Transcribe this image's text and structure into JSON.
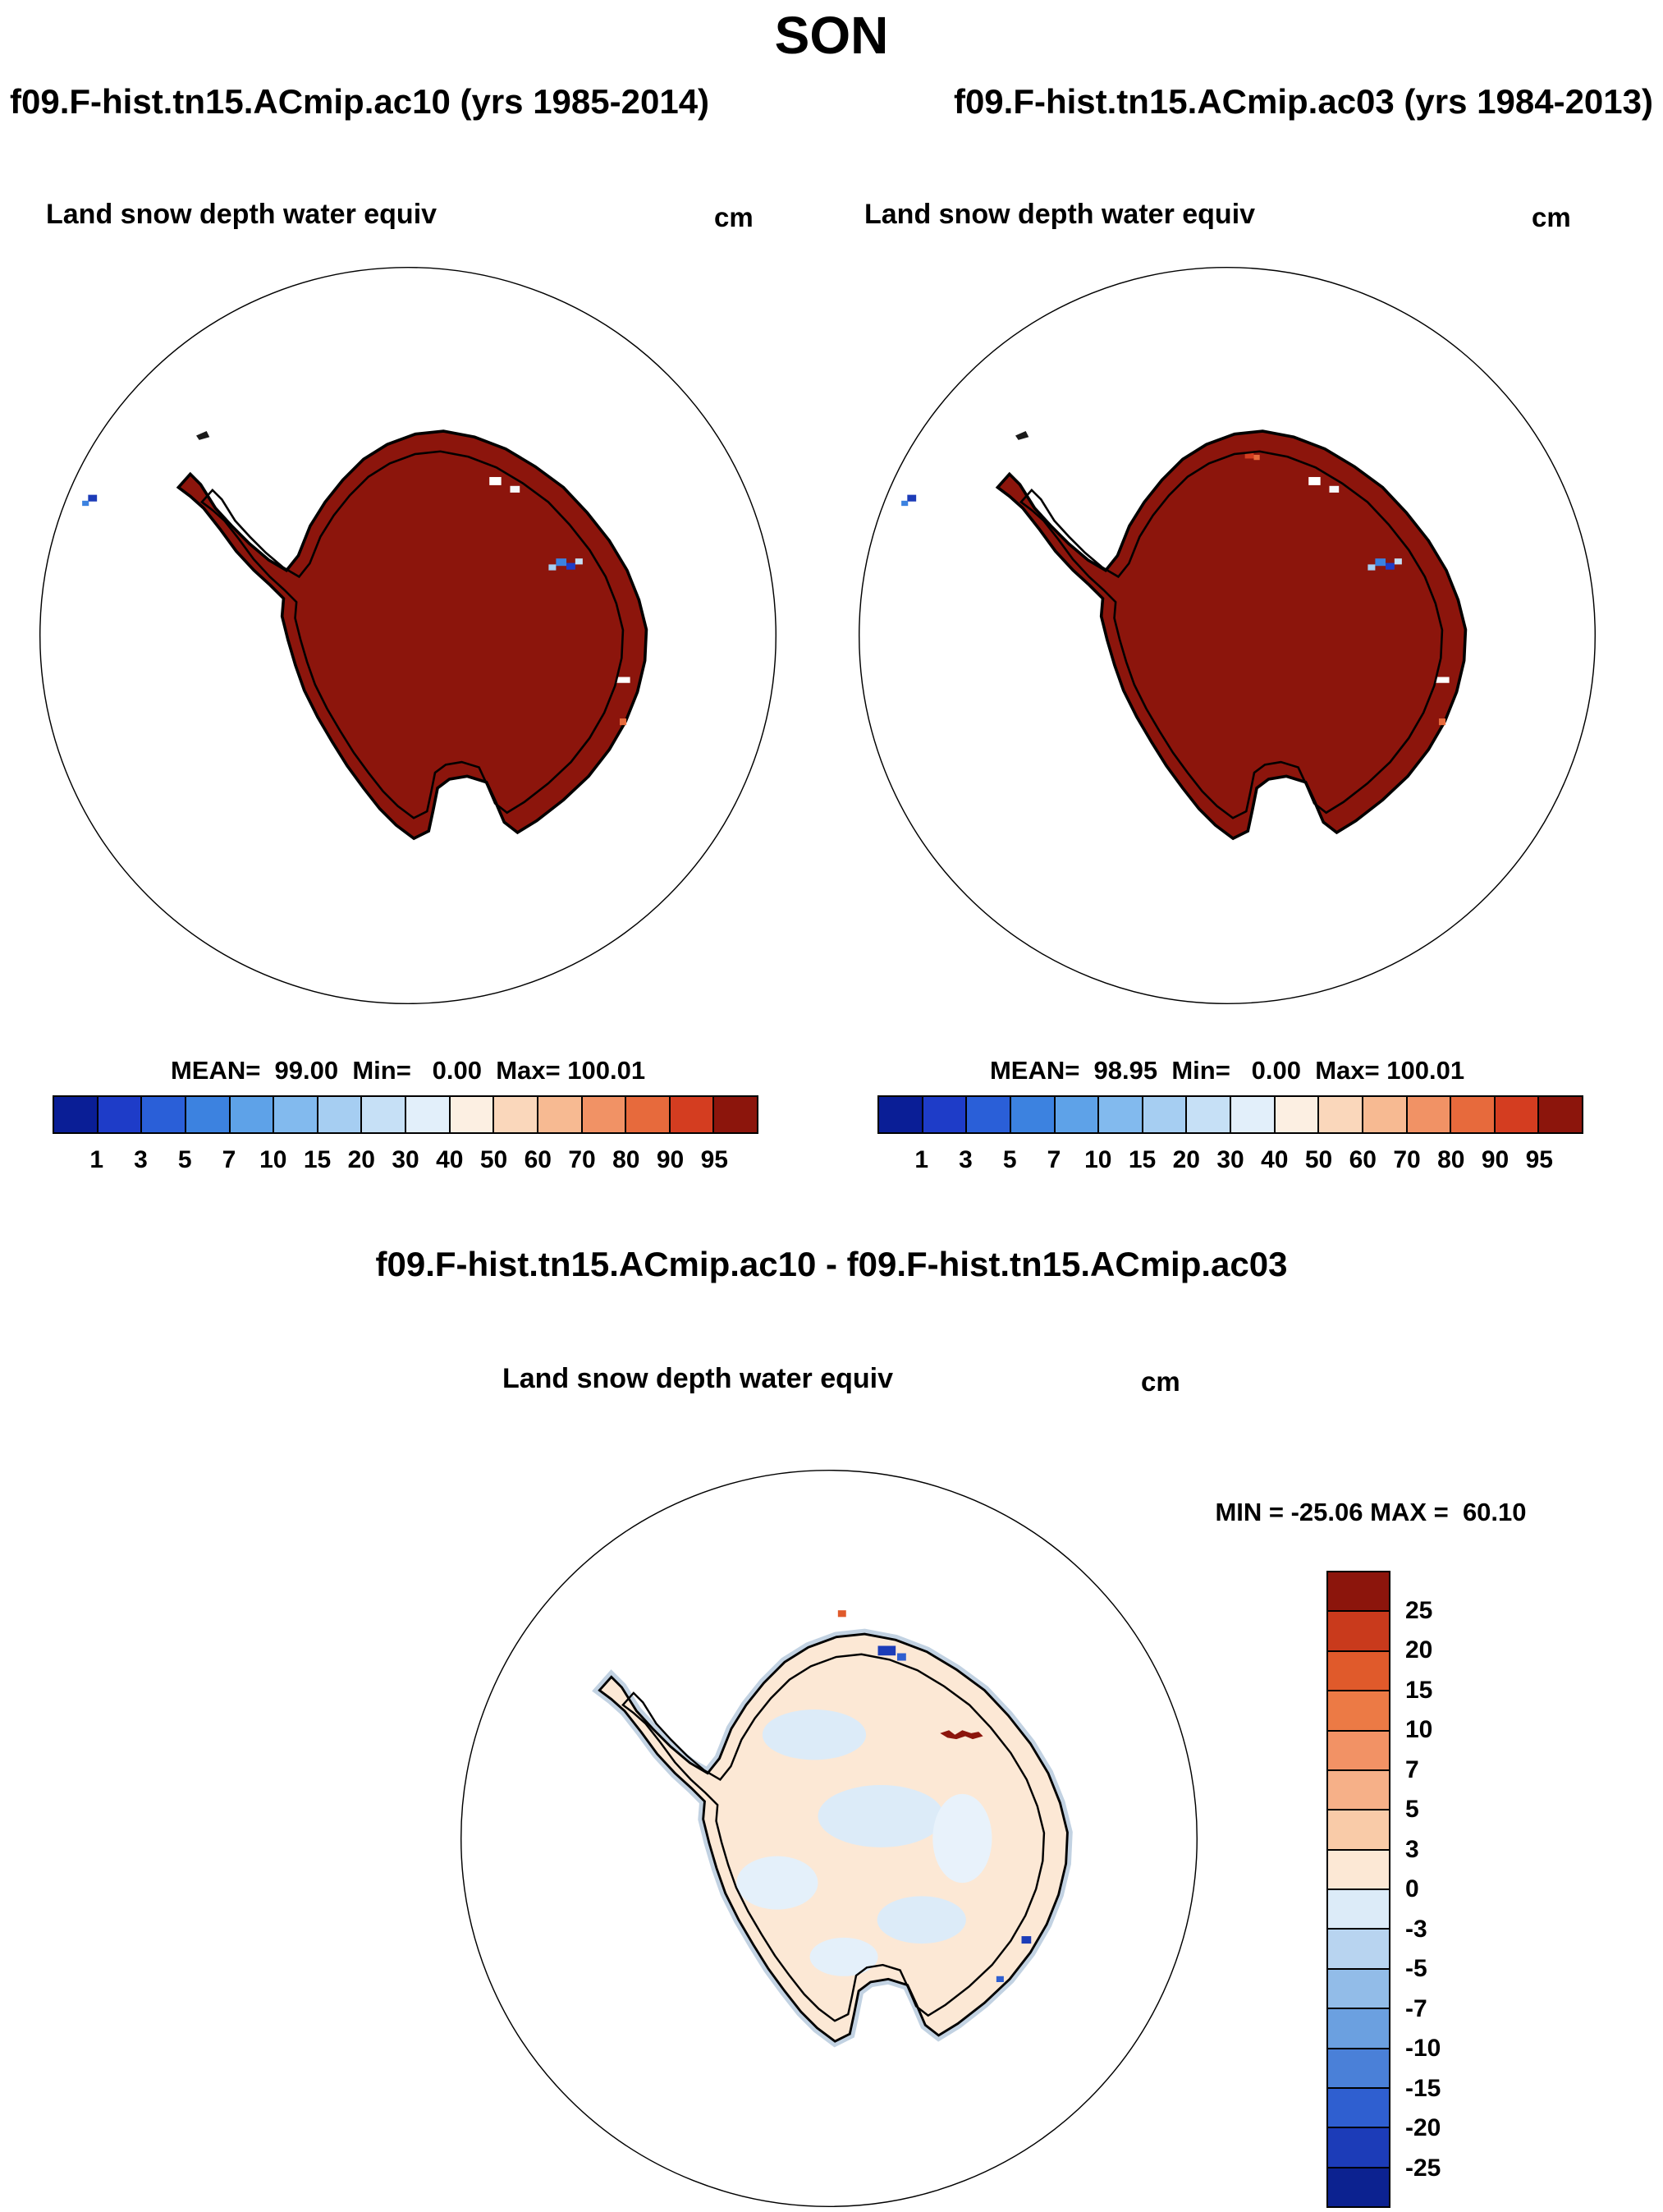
{
  "page_title": "SON",
  "subtitles": {
    "left": "f09.F-hist.tn15.ACmip.ac10 (yrs 1985-2014)",
    "right": "f09.F-hist.tn15.ACmip.ac03 (yrs 1984-2013)"
  },
  "panel_left": {
    "title": "Land snow depth water equiv",
    "units": "cm",
    "stats": "MEAN=  99.00  Min=   0.00  Max= 100.01"
  },
  "panel_right": {
    "title": "Land snow depth water equiv",
    "units": "cm",
    "stats": "MEAN=  98.95  Min=   0.00  Max= 100.01"
  },
  "panel_diff": {
    "title": "f09.F-hist.tn15.ACmip.ac10 - f09.F-hist.tn15.ACmip.ac03",
    "field_title": "Land snow depth water equiv",
    "units": "cm",
    "stats": "MIN = -25.06 MAX =  60.10"
  },
  "colorbar_main": {
    "colors": [
      "#0a1e96",
      "#1e3cc8",
      "#2a5fd8",
      "#3c82e0",
      "#5ea2e8",
      "#82baee",
      "#a6cef2",
      "#c6e0f6",
      "#e2effa",
      "#fcefe2",
      "#fad7bb",
      "#f7ba92",
      "#f19265",
      "#e76a3c",
      "#d43d20",
      "#8c150c"
    ],
    "ticks": [
      "1",
      "3",
      "5",
      "7",
      "10",
      "15",
      "20",
      "30",
      "40",
      "50",
      "60",
      "70",
      "80",
      "90",
      "95"
    ]
  },
  "colorbar_diff": {
    "colors": [
      "#8c150c",
      "#c93a1c",
      "#e05a2b",
      "#ec7a45",
      "#f29265",
      "#f6b088",
      "#f9cba8",
      "#fce8d5",
      "#dcebf8",
      "#b8d4f0",
      "#92bce8",
      "#6ba0e0",
      "#4a80d8",
      "#2f5fd0",
      "#1c3cb8",
      "#0c2290"
    ],
    "ticks": [
      "25",
      "20",
      "15",
      "10",
      "7",
      "5",
      "3",
      "0",
      "-3",
      "-5",
      "-7",
      "-10",
      "-15",
      "-20",
      "-25"
    ]
  },
  "colors": {
    "continent": "#8c150c",
    "diff_continent": "#fce8d5",
    "ocean": "#ffffff",
    "outline": "#000000"
  },
  "chart_data": [
    {
      "type": "heatmap",
      "title": "Land snow depth water equiv",
      "subtitle": "f09.F-hist.tn15.ACmip.ac10 (yrs 1985-2014)",
      "season": "SON",
      "units": "cm",
      "projection": "antarctic polar stereographic",
      "stats": {
        "mean": 99.0,
        "min": 0.0,
        "max": 100.01
      },
      "contour_levels": [
        1,
        3,
        5,
        7,
        10,
        15,
        20,
        30,
        40,
        50,
        60,
        70,
        80,
        90,
        95
      ],
      "palette": "16-step blue-to-red diverging",
      "legend_position": "bottom",
      "notes": "Antarctic continent almost entirely in highest bin (>95 cm)"
    },
    {
      "type": "heatmap",
      "title": "Land snow depth water equiv",
      "subtitle": "f09.F-hist.tn15.ACmip.ac03 (yrs 1984-2013)",
      "season": "SON",
      "units": "cm",
      "projection": "antarctic polar stereographic",
      "stats": {
        "mean": 98.95,
        "min": 0.0,
        "max": 100.01
      },
      "contour_levels": [
        1,
        3,
        5,
        7,
        10,
        15,
        20,
        30,
        40,
        50,
        60,
        70,
        80,
        90,
        95
      ],
      "palette": "16-step blue-to-red diverging",
      "legend_position": "bottom",
      "notes": "Antarctic continent almost entirely in highest bin (>95 cm)"
    },
    {
      "type": "heatmap",
      "title": "Land snow depth water equiv",
      "subtitle": "f09.F-hist.tn15.ACmip.ac10 - f09.F-hist.tn15.ACmip.ac03",
      "season": "SON",
      "units": "cm",
      "projection": "antarctic polar stereographic",
      "stats": {
        "min": -25.06,
        "max": 60.1
      },
      "contour_levels": [
        25,
        20,
        15,
        10,
        7,
        5,
        3,
        0,
        -3,
        -5,
        -7,
        -10,
        -15,
        -20,
        -25
      ],
      "palette": "16-step red-to-blue diverging",
      "legend_position": "right",
      "notes": "Difference field mostly near zero (pale orange/pale blue mottling) with isolated strong anomalies"
    }
  ]
}
